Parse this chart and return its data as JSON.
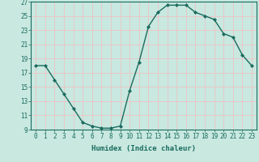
{
  "x": [
    0,
    1,
    2,
    3,
    4,
    5,
    6,
    7,
    8,
    9,
    10,
    11,
    12,
    13,
    14,
    15,
    16,
    17,
    18,
    19,
    20,
    21,
    22,
    23
  ],
  "y": [
    18,
    18,
    16,
    14,
    12,
    10,
    9.5,
    9.2,
    9.2,
    9.5,
    14.5,
    18.5,
    23.5,
    25.5,
    26.5,
    26.5,
    26.5,
    25.5,
    25,
    24.5,
    22.5,
    22,
    19.5,
    18
  ],
  "line_color": "#1a6b5e",
  "marker_color": "#1a6b5e",
  "bg_color": "#c8e8e0",
  "grid_major_color": "#e8c8c8",
  "xlabel": "Humidex (Indice chaleur)",
  "ylim": [
    9,
    27
  ],
  "xlim": [
    -0.5,
    23.5
  ],
  "yticks": [
    9,
    11,
    13,
    15,
    17,
    19,
    21,
    23,
    25,
    27
  ],
  "xticks": [
    0,
    1,
    2,
    3,
    4,
    5,
    6,
    7,
    8,
    9,
    10,
    11,
    12,
    13,
    14,
    15,
    16,
    17,
    18,
    19,
    20,
    21,
    22,
    23
  ]
}
